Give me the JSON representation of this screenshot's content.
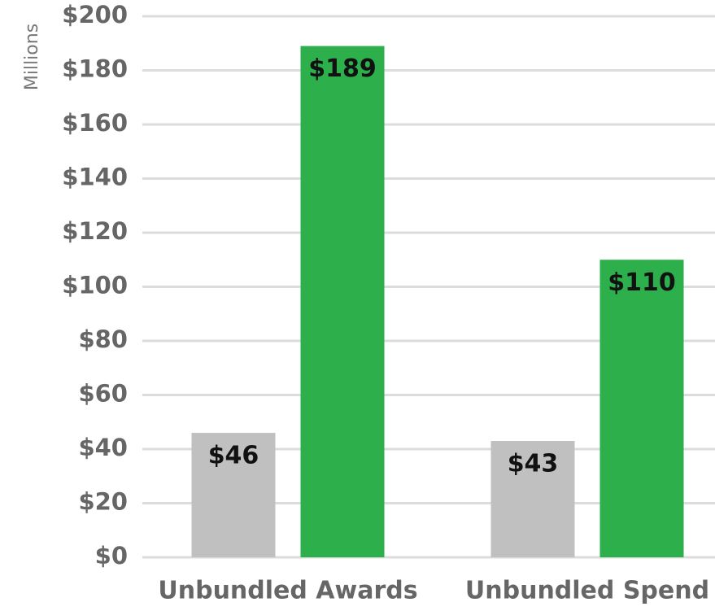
{
  "chart_data": {
    "type": "bar",
    "y_axis_label": "Millions",
    "categories": [
      "Unbundled Awards",
      "Unbundled Spend"
    ],
    "series": [
      {
        "color": "#c0c0c0",
        "values": [
          46,
          43
        ],
        "value_labels": [
          "$46",
          "$43"
        ]
      },
      {
        "color": "#2db04b",
        "values": [
          189,
          110
        ],
        "value_labels": [
          "$189",
          "$110"
        ]
      }
    ],
    "ylim": [
      0,
      200
    ],
    "yticks": [
      {
        "value": 0,
        "label": "$0"
      },
      {
        "value": 20,
        "label": "$20"
      },
      {
        "value": 40,
        "label": "$40"
      },
      {
        "value": 60,
        "label": "$60"
      },
      {
        "value": 80,
        "label": "$80"
      },
      {
        "value": 100,
        "label": "$100"
      },
      {
        "value": 120,
        "label": "$120"
      },
      {
        "value": 140,
        "label": "$140"
      },
      {
        "value": 160,
        "label": "$160"
      },
      {
        "value": 180,
        "label": "$180"
      },
      {
        "value": 200,
        "label": "$200"
      }
    ],
    "grid": true
  }
}
